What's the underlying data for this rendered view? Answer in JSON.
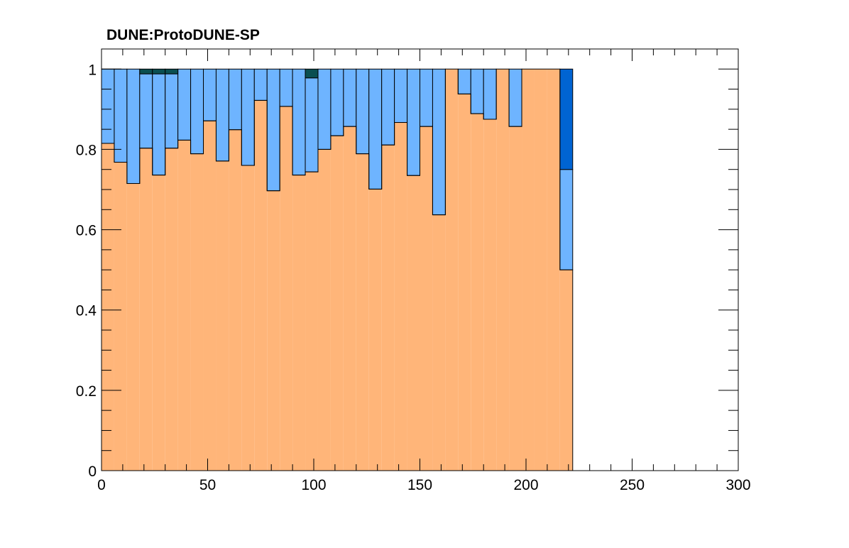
{
  "chart_data": {
    "type": "bar",
    "title": "DUNE:ProtoDUNE-SP",
    "xlabel": "",
    "ylabel": "",
    "xlim": [
      0,
      300
    ],
    "ylim": [
      0,
      1.05
    ],
    "x_ticks": [
      "0",
      "50",
      "100",
      "150",
      "200",
      "250",
      "300"
    ],
    "y_ticks": [
      "0",
      "0.2",
      "0.4",
      "0.6",
      "0.8",
      "1"
    ],
    "bin_edges_start": 0,
    "bin_width": 6,
    "n_bins": 37,
    "grid": false,
    "legend": "none",
    "stacked": true,
    "series": [
      {
        "color": "#ffb579",
        "values": [
          0.815,
          0.768,
          0.715,
          0.803,
          0.736,
          0.803,
          0.823,
          0.789,
          0.871,
          0.771,
          0.849,
          0.76,
          0.922,
          0.697,
          0.907,
          0.736,
          0.744,
          0.8,
          0.834,
          0.857,
          0.789,
          0.701,
          0.811,
          0.867,
          0.735,
          0.857,
          0.637,
          1.0,
          0.938,
          0.889,
          0.875,
          1.0,
          0.857,
          1.0,
          1.0,
          1.0,
          0.5
        ]
      },
      {
        "color": "#6eb4ff",
        "values": [
          0.185,
          0.232,
          0.285,
          0.185,
          0.252,
          0.185,
          0.177,
          0.211,
          0.129,
          0.229,
          0.151,
          0.24,
          0.078,
          0.303,
          0.093,
          0.264,
          0.234,
          0.2,
          0.166,
          0.143,
          0.211,
          0.299,
          0.189,
          0.133,
          0.265,
          0.143,
          0.363,
          0.0,
          0.062,
          0.111,
          0.125,
          0.0,
          0.143,
          0.0,
          0.0,
          0.0,
          0.25
        ]
      },
      {
        "color": "#0a4f51",
        "values": [
          0,
          0,
          0,
          0.012,
          0.012,
          0.012,
          0,
          0,
          0,
          0,
          0,
          0,
          0,
          0,
          0,
          0,
          0.022,
          0,
          0,
          0,
          0,
          0,
          0,
          0,
          0,
          0,
          0,
          0,
          0,
          0,
          0,
          0,
          0,
          0,
          0,
          0,
          0
        ]
      },
      {
        "color": "#0064d2",
        "values": [
          0,
          0,
          0,
          0,
          0,
          0,
          0,
          0,
          0,
          0,
          0,
          0,
          0,
          0,
          0,
          0,
          0,
          0,
          0,
          0,
          0,
          0,
          0,
          0,
          0,
          0,
          0,
          0,
          0,
          0,
          0,
          0,
          0,
          0,
          0,
          0,
          0.25
        ]
      }
    ]
  }
}
